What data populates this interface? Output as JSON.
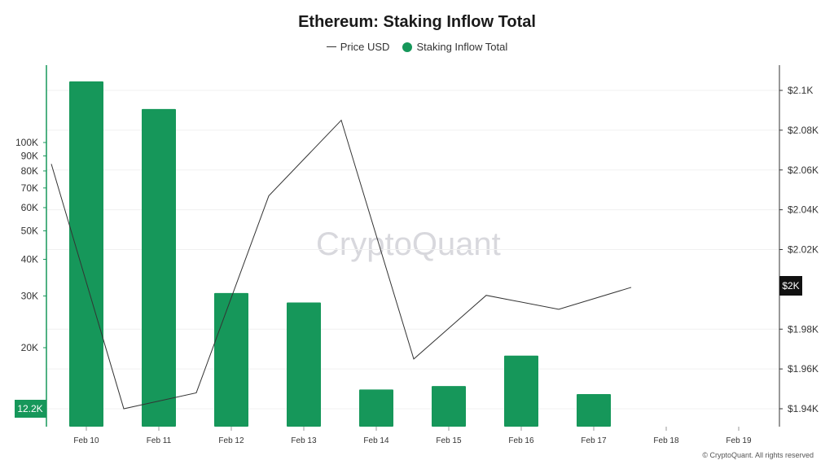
{
  "header": {
    "title": "Ethereum: Staking Inflow Total",
    "watermark": "CryptoQuant",
    "copyright": "© CryptoQuant. All rights reserved"
  },
  "legend": [
    {
      "label": "Price USD",
      "marker": "line",
      "color": "#333333"
    },
    {
      "label": "Staking Inflow Total",
      "marker": "dot",
      "color": "#16975a"
    }
  ],
  "chart_data": {
    "type": "bar",
    "title": "Ethereum: Staking Inflow Total",
    "categories": [
      "Feb 10",
      "Feb 11",
      "Feb 12",
      "Feb 13",
      "Feb 14",
      "Feb 15",
      "Feb 16",
      "Feb 17",
      "Feb 18",
      "Feb 19"
    ],
    "series": [
      {
        "name": "Staking Inflow Total",
        "type": "bar",
        "axis": "left",
        "color": "#16975a",
        "values": [
          186000,
          130000,
          30700,
          28500,
          14400,
          14800,
          18800,
          13900,
          null,
          null
        ]
      },
      {
        "name": "Price USD",
        "type": "line",
        "axis": "right",
        "color": "#333333",
        "values": [
          2063,
          1940,
          1948,
          2047,
          2085,
          1965,
          1997,
          1990,
          2001,
          null
        ]
      }
    ],
    "left_axis": {
      "scale": "log",
      "ticks": [
        20000,
        30000,
        40000,
        50000,
        60000,
        70000,
        80000,
        90000,
        100000
      ],
      "tick_labels": [
        "20K",
        "30K",
        "40K",
        "50K",
        "60K",
        "70K",
        "80K",
        "90K",
        "100K"
      ],
      "current_value_label": "12.2K",
      "current_value": 12200
    },
    "right_axis": {
      "scale": "linear",
      "ticks": [
        1940,
        1960,
        1980,
        2020,
        2040,
        2060,
        2080,
        2100
      ],
      "tick_labels": [
        "$1.94K",
        "$1.96K",
        "$1.98K",
        "$2.02K",
        "$2.04K",
        "$2.06K",
        "$2.08K",
        "$2.1K"
      ],
      "current_value_label": "$2K",
      "current_value": 2001
    },
    "grid": true,
    "legend_position": "top-center"
  }
}
